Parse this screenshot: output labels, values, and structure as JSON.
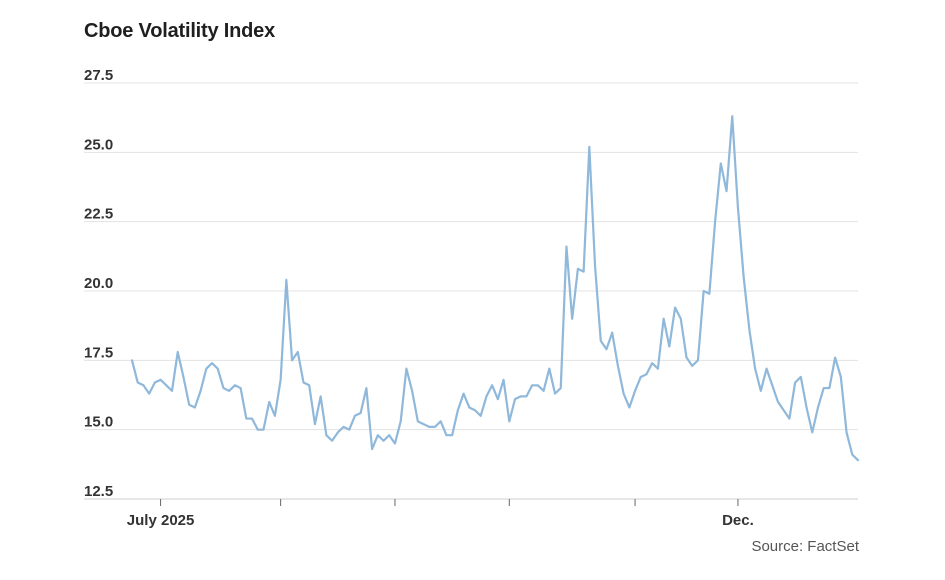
{
  "chart_data": {
    "type": "line",
    "title": "Cboe Volatility Index",
    "source": "Source: FactSet",
    "xlabel": "",
    "ylabel": "",
    "ylim": [
      12.5,
      27.5
    ],
    "yticks": [
      {
        "value": 12.5,
        "label": "12.5"
      },
      {
        "value": 15.0,
        "label": "15.0"
      },
      {
        "value": 17.5,
        "label": "17.5"
      },
      {
        "value": 20.0,
        "label": "20.0"
      },
      {
        "value": 22.5,
        "label": "22.5"
      },
      {
        "value": 25.0,
        "label": "25.0"
      },
      {
        "value": 27.5,
        "label": "27.5"
      }
    ],
    "xticks": [
      {
        "index": 5,
        "label": "July 2025"
      },
      {
        "index": 26,
        "label": ""
      },
      {
        "index": 46,
        "label": ""
      },
      {
        "index": 66,
        "label": ""
      },
      {
        "index": 88,
        "label": ""
      },
      {
        "index": 106,
        "label": "Dec."
      }
    ],
    "grid": true,
    "legend": "none",
    "color": "#8fb8da",
    "series": [
      {
        "name": "Cboe Volatility Index",
        "values": [
          17.5,
          16.7,
          16.6,
          16.3,
          16.7,
          16.8,
          16.6,
          16.4,
          17.8,
          16.9,
          15.9,
          15.8,
          16.4,
          17.2,
          17.4,
          17.2,
          16.5,
          16.4,
          16.6,
          16.5,
          15.4,
          15.4,
          15.0,
          15.0,
          16.0,
          15.5,
          16.8,
          20.4,
          17.5,
          17.8,
          16.7,
          16.6,
          15.2,
          16.2,
          14.8,
          14.6,
          14.9,
          15.1,
          15.0,
          15.5,
          15.6,
          16.5,
          14.3,
          14.8,
          14.6,
          14.8,
          14.5,
          15.3,
          17.2,
          16.4,
          15.3,
          15.2,
          15.1,
          15.1,
          15.3,
          14.8,
          14.8,
          15.7,
          16.3,
          15.8,
          15.7,
          15.5,
          16.2,
          16.6,
          16.1,
          16.8,
          15.3,
          16.1,
          16.2,
          16.2,
          16.6,
          16.6,
          16.4,
          17.2,
          16.3,
          16.5,
          21.6,
          19.0,
          20.8,
          20.7,
          25.2,
          20.9,
          18.2,
          17.9,
          18.5,
          17.3,
          16.3,
          15.8,
          16.4,
          16.9,
          17.0,
          17.4,
          17.2,
          19.0,
          18.0,
          19.4,
          19.0,
          17.6,
          17.3,
          17.5,
          20.0,
          19.9,
          22.5,
          24.6,
          23.6,
          26.3,
          23.0,
          20.5,
          18.6,
          17.2,
          16.4,
          17.2,
          16.6,
          16.0,
          15.7,
          15.4,
          16.7,
          16.9,
          15.8,
          14.9,
          15.8,
          16.5,
          16.5,
          17.6,
          16.9,
          14.9,
          14.1,
          13.9
        ]
      }
    ]
  }
}
